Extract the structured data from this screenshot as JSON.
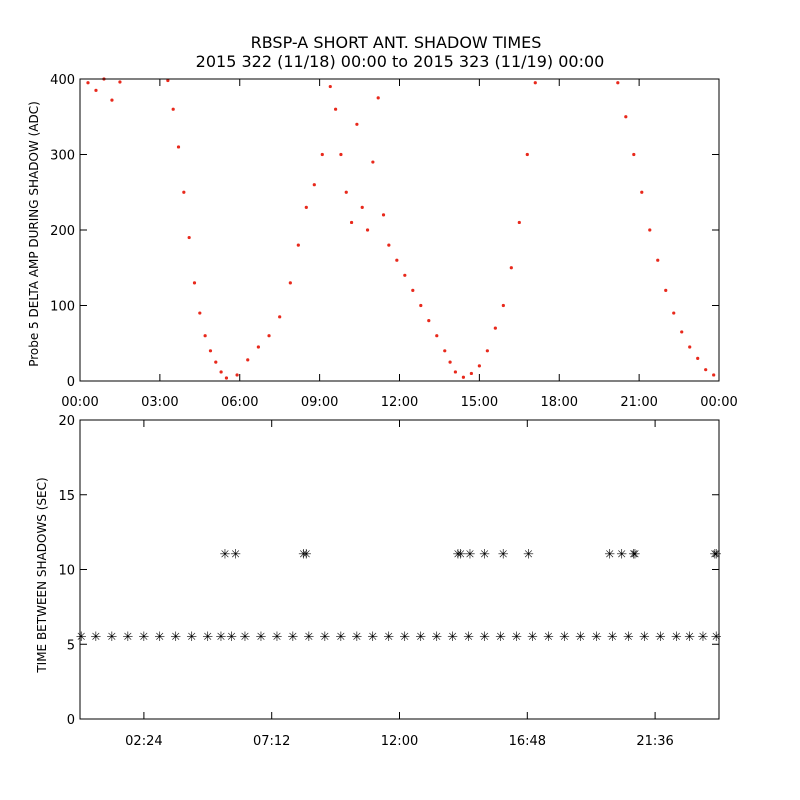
{
  "chart_data": [
    {
      "type": "scatter",
      "title": "RBSP-A SHORT ANT. SHADOW TIMES",
      "subtitle": "2015 322 (11/18) 00:00 to 2015 323 (11/19) 00:00",
      "xlabel": "",
      "ylabel": "Probe 5 DELTA AMP DURING SHADOW (ADC)",
      "xlim": [
        0,
        24
      ],
      "ylim": [
        0,
        400
      ],
      "x_tick_values": [
        0,
        3,
        6,
        9,
        12,
        15,
        18,
        21,
        24
      ],
      "x_tick_labels": [
        "00:00",
        "03:00",
        "06:00",
        "09:00",
        "12:00",
        "15:00",
        "18:00",
        "21:00",
        "00:00"
      ],
      "y_tick_values": [
        0,
        100,
        200,
        300,
        400
      ],
      "y_tick_labels": [
        "0",
        "100",
        "200",
        "300",
        "400"
      ],
      "color": "#e8291c",
      "series": [
        {
          "name": "probe5-delta-amp",
          "x": [
            0.3,
            0.6,
            0.9,
            1.2,
            1.5,
            3.3,
            3.5,
            3.7,
            3.9,
            4.1,
            4.3,
            4.5,
            4.7,
            4.9,
            5.1,
            5.3,
            5.5,
            5.9,
            6.3,
            6.7,
            7.1,
            7.5,
            7.9,
            8.2,
            8.5,
            8.8,
            9.1,
            9.4,
            9.6,
            9.8,
            10.0,
            10.2,
            10.4,
            10.6,
            10.8,
            11.0,
            11.2,
            11.4,
            11.6,
            11.9,
            12.2,
            12.5,
            12.8,
            13.1,
            13.4,
            13.7,
            13.9,
            14.1,
            14.4,
            14.7,
            15.0,
            15.3,
            15.6,
            15.9,
            16.2,
            16.5,
            16.8,
            17.1,
            20.2,
            20.5,
            20.8,
            21.1,
            21.4,
            21.7,
            22.0,
            22.3,
            22.6,
            22.9,
            23.2,
            23.5,
            23.8
          ],
          "y": [
            395,
            385,
            400,
            372,
            396,
            398,
            360,
            310,
            250,
            190,
            130,
            90,
            60,
            40,
            25,
            12,
            4,
            8,
            28,
            45,
            60,
            85,
            130,
            180,
            230,
            260,
            300,
            390,
            360,
            300,
            250,
            210,
            340,
            230,
            200,
            290,
            375,
            220,
            180,
            160,
            140,
            120,
            100,
            80,
            60,
            40,
            25,
            12,
            5,
            10,
            20,
            40,
            70,
            100,
            150,
            210,
            300,
            395,
            395,
            350,
            300,
            250,
            200,
            160,
            120,
            90,
            65,
            45,
            30,
            15,
            8
          ]
        }
      ]
    },
    {
      "type": "scatter",
      "title": "",
      "xlabel": "",
      "ylabel": "TIME BETWEEN SHADOWS (SEC)",
      "xlim": [
        0,
        24
      ],
      "ylim": [
        0,
        20
      ],
      "x_tick_values": [
        2.4,
        7.2,
        12.0,
        16.8,
        21.6
      ],
      "x_tick_labels": [
        "02:24",
        "07:12",
        "12:00",
        "16:48",
        "21:36"
      ],
      "y_tick_values": [
        0,
        5,
        10,
        15,
        20
      ],
      "y_tick_labels": [
        "0",
        "5",
        "10",
        "15",
        "20"
      ],
      "color": "#000000",
      "series": [
        {
          "name": "baseline-interval",
          "x": [
            0.05,
            0.6,
            1.2,
            1.8,
            2.4,
            3.0,
            3.6,
            4.2,
            4.8,
            5.3,
            5.7,
            6.2,
            6.8,
            7.4,
            8.0,
            8.6,
            9.2,
            9.8,
            10.4,
            11.0,
            11.6,
            12.2,
            12.8,
            13.4,
            14.0,
            14.6,
            15.2,
            15.8,
            16.4,
            17.0,
            17.6,
            18.2,
            18.8,
            19.4,
            20.0,
            20.6,
            21.2,
            21.8,
            22.4,
            22.9,
            23.4,
            23.9
          ],
          "y": [
            5.5,
            5.5,
            5.5,
            5.5,
            5.5,
            5.5,
            5.5,
            5.5,
            5.5,
            5.5,
            5.5,
            5.5,
            5.5,
            5.5,
            5.5,
            5.5,
            5.5,
            5.5,
            5.5,
            5.5,
            5.5,
            5.5,
            5.5,
            5.5,
            5.5,
            5.5,
            5.5,
            5.5,
            5.5,
            5.5,
            5.5,
            5.5,
            5.5,
            5.5,
            5.5,
            5.5,
            5.5,
            5.5,
            5.5,
            5.5,
            5.5,
            5.5
          ]
        },
        {
          "name": "long-interval",
          "x": [
            5.45,
            5.85,
            8.4,
            8.5,
            14.2,
            14.3,
            14.65,
            15.2,
            15.9,
            16.85,
            19.9,
            20.35,
            20.8,
            20.85,
            23.85,
            23.9
          ],
          "y": [
            11.0,
            11.0,
            11.0,
            11.0,
            11.0,
            11.0,
            11.0,
            11.0,
            11.0,
            11.0,
            11.0,
            11.0,
            11.0,
            11.0,
            11.0,
            11.0
          ]
        }
      ]
    }
  ]
}
